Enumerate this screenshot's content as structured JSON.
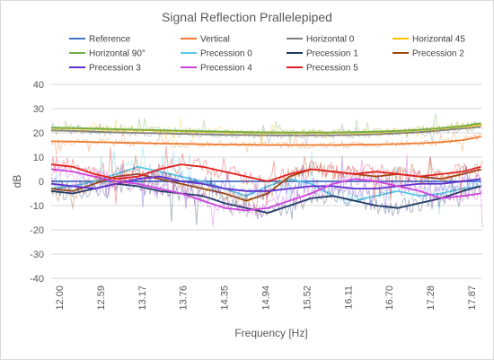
{
  "chart_data": {
    "type": "line",
    "title": "Signal Reflection Prallelepiped",
    "xlabel": "Frequency [Hz]",
    "ylabel": "dB",
    "xlim": [
      12.0,
      17.97
    ],
    "ylim": [
      -40,
      40
    ],
    "x_ticks": [
      "12.00",
      "12.59",
      "13.17",
      "13.76",
      "14.35",
      "14.94",
      "15.52",
      "16.11",
      "16.70",
      "17.28",
      "17.87"
    ],
    "y_ticks": [
      40,
      30,
      20,
      10,
      0,
      -10,
      -20,
      -30,
      -40
    ],
    "grid": true,
    "legend_position": "top",
    "x": [
      12.0,
      12.3,
      12.6,
      12.9,
      13.2,
      13.5,
      13.8,
      14.1,
      14.4,
      14.7,
      15.0,
      15.3,
      15.6,
      15.9,
      16.2,
      16.5,
      16.8,
      17.1,
      17.4,
      17.7,
      17.95
    ],
    "series": [
      {
        "name": "Reference",
        "color": "#4472c4",
        "values": [
          0,
          0,
          0,
          0,
          0,
          0,
          0,
          0,
          0,
          0,
          0,
          0,
          0,
          0,
          0,
          0,
          0,
          0,
          0,
          0,
          0
        ]
      },
      {
        "name": "Vertical",
        "color": "#ed7d31",
        "values": [
          16.5,
          16.4,
          16.2,
          16.0,
          15.8,
          15.6,
          15.5,
          15.3,
          15.2,
          15.1,
          15.0,
          15.0,
          15.0,
          15.0,
          15.1,
          15.2,
          15.4,
          15.7,
          16.2,
          17.0,
          18.5
        ]
      },
      {
        "name": "Horizontal 0",
        "color": "#7f7f7f",
        "values": [
          21,
          20.8,
          20.5,
          20.2,
          20,
          19.8,
          19.6,
          19.4,
          19.2,
          19.1,
          19,
          19,
          19,
          19,
          19.2,
          19.4,
          19.8,
          20.3,
          21,
          21.8,
          22.5
        ]
      },
      {
        "name": "Horizontal 45",
        "color": "#ffc000",
        "values": [
          22,
          21.8,
          21.6,
          21.3,
          21.1,
          20.9,
          20.7,
          20.5,
          20.3,
          20.1,
          20,
          20,
          20,
          20,
          20.1,
          20.3,
          20.6,
          21.1,
          21.8,
          22.6,
          23.5
        ]
      },
      {
        "name": "Horizontal 90°",
        "color": "#70ad47",
        "values": [
          22.2,
          22,
          21.8,
          21.5,
          21.3,
          21.1,
          20.9,
          20.7,
          20.5,
          20.3,
          20.2,
          20.2,
          20.2,
          20.2,
          20.3,
          20.5,
          20.8,
          21.3,
          22,
          22.8,
          24
        ]
      },
      {
        "name": "Precession 0",
        "color": "#5bc8e8",
        "values": [
          -3,
          -2,
          0,
          3,
          6,
          4,
          2,
          0,
          -3,
          -6,
          -2,
          1,
          -1,
          -6,
          -8,
          -6,
          -4,
          -6,
          -5,
          -3,
          -2
        ]
      },
      {
        "name": "Precession 1",
        "color": "#203864",
        "values": [
          -4,
          -5,
          -3,
          -1,
          -2,
          -4,
          -5,
          -6,
          -9,
          -11,
          -13,
          -10,
          -7,
          -6,
          -8,
          -10,
          -11,
          -9,
          -7,
          -4,
          -2
        ]
      },
      {
        "name": "Precession 2",
        "color": "#9e480e",
        "values": [
          -3,
          -4,
          -1,
          2,
          3,
          1,
          -1,
          -3,
          -5,
          -8,
          -5,
          2,
          5,
          4,
          3,
          2,
          3,
          2,
          1,
          3,
          5
        ]
      },
      {
        "name": "Precession 3",
        "color": "#5b2fd0",
        "values": [
          -1,
          -2,
          -3,
          -1,
          1,
          2,
          0,
          -1,
          -3,
          -4,
          -4,
          -3,
          -2,
          -2,
          -3,
          -3,
          -2,
          -1,
          -1,
          0,
          1
        ]
      },
      {
        "name": "Precession 4",
        "color": "#cc44dd",
        "values": [
          5,
          4,
          2,
          0,
          -1,
          -3,
          -5,
          -8,
          -11,
          -12,
          -11,
          -8,
          -5,
          -1,
          1,
          0,
          -2,
          -4,
          -7,
          -6,
          -5
        ]
      },
      {
        "name": "Precession 5",
        "color": "#e02020",
        "values": [
          7,
          6,
          3,
          1,
          2,
          5,
          7,
          6,
          4,
          2,
          0,
          3,
          5,
          4,
          3,
          4,
          3,
          2,
          3,
          4,
          6
        ]
      }
    ]
  }
}
